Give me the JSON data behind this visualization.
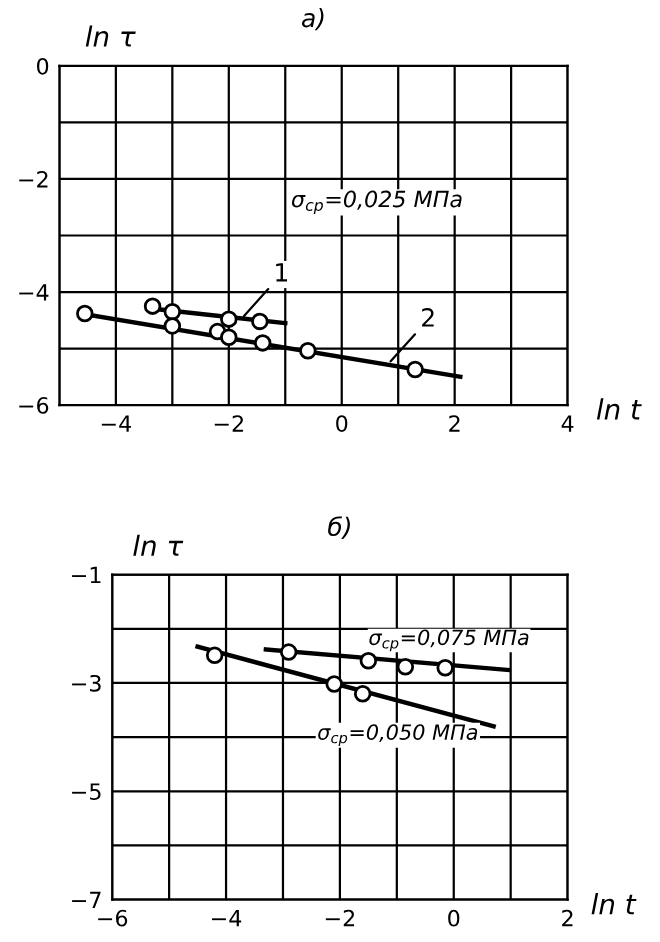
{
  "chart_data": [
    {
      "type": "line",
      "title": "а)",
      "xlabel": "ln t",
      "ylabel": "ln τ",
      "xlim": [
        -5,
        4
      ],
      "ylim": [
        -6,
        0
      ],
      "xticks": [
        {
          "value": -5,
          "label": null
        },
        -4,
        {
          "value": -3,
          "label": null
        },
        -2,
        {
          "value": -1,
          "label": null
        },
        0,
        {
          "value": 1,
          "label": null
        },
        2,
        {
          "value": 3,
          "label": null
        },
        4
      ],
      "yticks": [
        -6,
        {
          "value": -5,
          "label": null
        },
        -4,
        {
          "value": -3,
          "label": null
        },
        -2,
        {
          "value": -1,
          "label": null
        },
        0
      ],
      "grid": true,
      "series": [
        {
          "type": "scatter",
          "color": "#000000",
          "marker": "circle",
          "x": [
            -3.35,
            -3.0,
            -2.0,
            -1.45
          ],
          "values": [
            -4.25,
            -4.35,
            -4.48,
            -4.52
          ]
        },
        {
          "color": "#000000",
          "marker": "none",
          "x": [
            -3.3,
            -1.0
          ],
          "values": [
            -4.3,
            -4.55
          ]
        },
        {
          "type": "scatter",
          "color": "#000000",
          "marker": "circle",
          "x": [
            -4.55,
            -3.0,
            -2.2,
            -2.0,
            -1.4,
            -0.6,
            1.3
          ],
          "values": [
            -4.38,
            -4.6,
            -4.7,
            -4.8,
            -4.9,
            -5.04,
            -5.37
          ]
        },
        {
          "color": "#000000",
          "marker": "none",
          "x": [
            -4.5,
            2.1
          ],
          "values": [
            -4.4,
            -5.5
          ]
        }
      ],
      "annotations": [
        {
          "text": "1",
          "x": -1.8,
          "y": -4.5
        },
        {
          "text": "2",
          "x": 0.8,
          "y": -5.3
        },
        "σ$_{ср}$=0,025 МПа"
      ]
    },
    {
      "type": "line",
      "title": "б)",
      "xlabel": "ln t",
      "ylabel": "ln τ",
      "xlim": [
        -6,
        2
      ],
      "ylim": [
        -7,
        -1
      ],
      "xticks": [
        -6,
        {
          "value": -5,
          "label": null
        },
        -4,
        {
          "value": -3,
          "label": null
        },
        -2,
        {
          "value": -1,
          "label": null
        },
        0,
        {
          "value": 1,
          "label": null
        },
        2
      ],
      "yticks": [
        -7,
        {
          "value": -6,
          "label": null
        },
        -5,
        {
          "value": -4,
          "label": null
        },
        -3,
        {
          "value": -2,
          "label": null
        },
        -1
      ],
      "grid": true,
      "series": [
        {
          "type": "scatter",
          "color": "#000000",
          "marker": "circle",
          "x": [
            -2.9,
            -1.5,
            -0.85,
            -0.15
          ],
          "values": [
            -2.43,
            -2.59,
            -2.7,
            -2.72
          ]
        },
        {
          "color": "#000000",
          "marker": "none",
          "x": [
            -3.3,
            0.95
          ],
          "values": [
            -2.38,
            -2.76
          ]
        },
        {
          "type": "scatter",
          "color": "#000000",
          "marker": "circle",
          "x": [
            -4.2,
            -2.1,
            -1.6
          ],
          "values": [
            -2.49,
            -3.02,
            -3.2
          ]
        },
        {
          "color": "#000000",
          "marker": "none",
          "x": [
            -4.5,
            0.7
          ],
          "values": [
            -2.33,
            -3.8
          ]
        }
      ],
      "annotations": [
        {
          "text": "σ$_{ср}$=0,075 МПа",
          "x": -1.5,
          "y": -2.42
        },
        "σ$_{ср}$=0,050 МПа"
      ]
    }
  ]
}
